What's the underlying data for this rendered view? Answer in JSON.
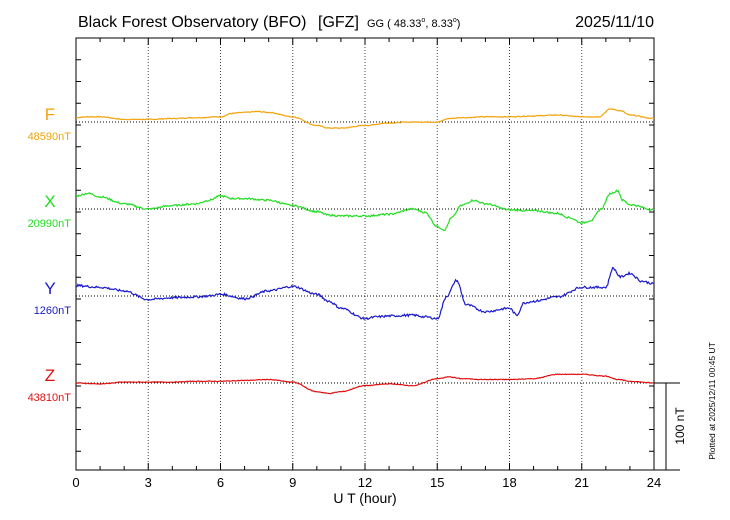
{
  "chart_data": {
    "type": "line",
    "title": "Black Forest Observatory (BFO)",
    "network": "[GFZ]",
    "coords_prefix": "GG ( 48.33",
    "coords_mid": ",   8.33",
    "coords_suffix": ")",
    "date": "2025/11/10",
    "xlabel": "U T (hour)",
    "xlim": [
      0,
      24
    ],
    "xticks": [
      "0",
      "3",
      "6",
      "9",
      "12",
      "15",
      "18",
      "21",
      "24"
    ],
    "scale_label": "100 nT",
    "scale_nT": 100,
    "footer": "Plotted at 2025/12/11 00:45 UT",
    "grid": true,
    "series": [
      {
        "name": "F",
        "baseline_label": "48590nT",
        "color": "#f2a20a",
        "x": [
          0,
          0.5,
          1,
          2,
          3,
          4,
          5,
          6,
          6.5,
          7,
          7.5,
          8,
          9,
          10,
          10.5,
          11,
          12,
          13,
          14,
          15,
          15.5,
          16,
          17,
          18,
          19,
          20,
          21,
          21.7,
          22.2,
          22.6,
          23,
          24
        ],
        "y": [
          5,
          6,
          6,
          3,
          3,
          4,
          5,
          6,
          10,
          11,
          12,
          11,
          6,
          -4,
          -7,
          -7,
          -4,
          -1,
          0,
          0,
          4,
          5,
          6,
          6,
          7,
          8,
          6,
          6,
          15,
          13,
          8,
          4
        ]
      },
      {
        "name": "X",
        "baseline_label": "20990nT",
        "color": "#22dd22",
        "x": [
          0,
          0.5,
          1,
          2,
          3,
          4,
          5,
          5.5,
          6,
          6.5,
          7,
          8,
          9,
          10,
          10.5,
          11,
          12,
          13,
          14,
          14.5,
          15,
          15.3,
          15.6,
          16,
          16.5,
          17,
          18,
          19,
          20,
          20.5,
          21,
          21.4,
          21.8,
          22.2,
          22.5,
          22.7,
          23,
          24
        ],
        "y": [
          15,
          18,
          14,
          6,
          0,
          4,
          6,
          10,
          15,
          12,
          12,
          10,
          4,
          -3,
          -7,
          -8,
          -8,
          -6,
          0,
          -4,
          -20,
          -24,
          -10,
          4,
          10,
          6,
          -1,
          -2,
          -5,
          -10,
          -16,
          -13,
          0,
          18,
          21,
          10,
          5,
          -1
        ],
        "jitter": 2
      },
      {
        "name": "Y",
        "baseline_label": "1260nT",
        "color": "#1a1acc",
        "x": [
          0,
          1,
          2,
          3,
          4,
          5,
          5.5,
          6,
          7,
          8,
          9,
          10,
          10.5,
          11,
          12,
          12.5,
          13,
          14,
          14.5,
          15,
          15.4,
          15.8,
          16.2,
          17,
          18,
          18.3,
          18.6,
          19,
          20,
          21,
          21.5,
          22,
          22.3,
          22.6,
          23,
          23.5,
          24
        ],
        "y": [
          12,
          10,
          6,
          -4,
          -2,
          -1,
          0,
          2,
          -3,
          6,
          11,
          2,
          -6,
          -14,
          -26,
          -24,
          -23,
          -22,
          -24,
          -26,
          0,
          18,
          -10,
          -18,
          -14,
          -22,
          -8,
          -6,
          -1,
          10,
          10,
          10,
          32,
          22,
          26,
          17,
          14
        ],
        "jitter": 2.5
      },
      {
        "name": "Z",
        "baseline_label": "43810nT",
        "color": "#e01010",
        "x": [
          0,
          1,
          2,
          3,
          4,
          5,
          6,
          7,
          8,
          9,
          10,
          10.5,
          11,
          12,
          13,
          14,
          15,
          15.5,
          16,
          17,
          18,
          19,
          20,
          21,
          22,
          22.5,
          23,
          24
        ],
        "y": [
          0,
          -1,
          1,
          1,
          1,
          2,
          2,
          3,
          4,
          1,
          -10,
          -12,
          -10,
          -3,
          -1,
          -3,
          5,
          7,
          5,
          4,
          4,
          5,
          10,
          10,
          8,
          4,
          2,
          0
        ],
        "jitter": 0.8
      }
    ]
  }
}
